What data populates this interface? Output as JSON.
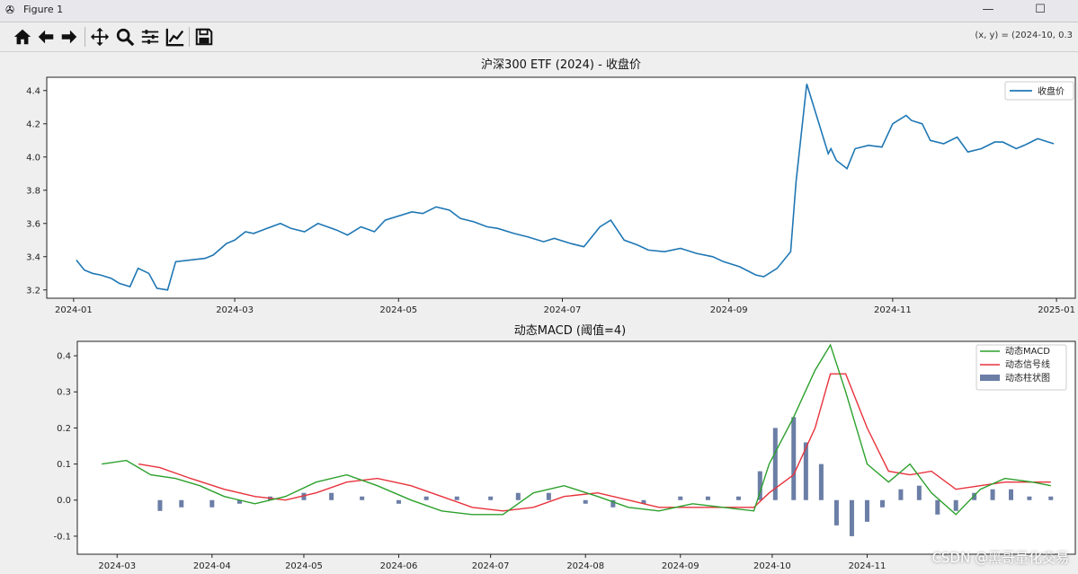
{
  "window": {
    "title": "Figure 1",
    "minimize": "—",
    "maximize": "☐"
  },
  "toolbar": {
    "buttons": [
      "home-icon",
      "back-icon",
      "forward-icon",
      "pan-icon",
      "zoom-icon",
      "configure-subplots-icon",
      "edit-axis-icon",
      "save-icon"
    ],
    "coord_readout": "(x, y) = (2024-10, 0.3"
  },
  "watermark": "CSDN @黑哥量化交易",
  "colors": {
    "price": "#1f77b4",
    "macd": "#2ca02c",
    "signal": "#e8323c",
    "hist": "#6b7ea6"
  },
  "chart_data": [
    {
      "type": "line",
      "title": "沪深300 ETF (2024) - 收盘价",
      "xlim": [
        "2023-12-22",
        "2025-01-08"
      ],
      "ylim": [
        3.15,
        4.48
      ],
      "yticks": [
        3.2,
        3.4,
        3.6,
        3.8,
        4.0,
        4.2,
        4.4
      ],
      "xticks": [
        "2024-01",
        "2024-03",
        "2024-05",
        "2024-07",
        "2024-09",
        "2024-11",
        "2025-01"
      ],
      "legend": "top-right",
      "series": [
        {
          "name": "收盘价",
          "x": [
            "2024-01-02",
            "2024-01-05",
            "2024-01-08",
            "2024-01-11",
            "2024-01-15",
            "2024-01-18",
            "2024-01-22",
            "2024-01-25",
            "2024-01-29",
            "2024-02-01",
            "2024-02-05",
            "2024-02-08",
            "2024-02-19",
            "2024-02-22",
            "2024-02-27",
            "2024-03-01",
            "2024-03-05",
            "2024-03-08",
            "2024-03-13",
            "2024-03-18",
            "2024-03-22",
            "2024-03-27",
            "2024-04-01",
            "2024-04-08",
            "2024-04-12",
            "2024-04-17",
            "2024-04-22",
            "2024-04-26",
            "2024-05-06",
            "2024-05-10",
            "2024-05-15",
            "2024-05-20",
            "2024-05-24",
            "2024-05-29",
            "2024-06-03",
            "2024-06-07",
            "2024-06-13",
            "2024-06-18",
            "2024-06-24",
            "2024-06-28",
            "2024-07-04",
            "2024-07-09",
            "2024-07-15",
            "2024-07-19",
            "2024-07-24",
            "2024-07-29",
            "2024-08-02",
            "2024-08-08",
            "2024-08-14",
            "2024-08-20",
            "2024-08-26",
            "2024-08-30",
            "2024-09-05",
            "2024-09-11",
            "2024-09-14",
            "2024-09-19",
            "2024-09-24",
            "2024-09-26",
            "2024-09-30",
            "2024-10-08",
            "2024-10-09",
            "2024-10-11",
            "2024-10-15",
            "2024-10-18",
            "2024-10-23",
            "2024-10-28",
            "2024-11-01",
            "2024-11-06",
            "2024-11-08",
            "2024-11-12",
            "2024-11-15",
            "2024-11-20",
            "2024-11-25",
            "2024-11-29",
            "2024-12-04",
            "2024-12-09",
            "2024-12-12",
            "2024-12-17",
            "2024-12-20",
            "2024-12-25",
            "2024-12-31"
          ],
          "y": [
            3.38,
            3.32,
            3.3,
            3.29,
            3.27,
            3.24,
            3.22,
            3.33,
            3.3,
            3.21,
            3.2,
            3.37,
            3.39,
            3.41,
            3.48,
            3.5,
            3.55,
            3.54,
            3.57,
            3.6,
            3.57,
            3.55,
            3.6,
            3.56,
            3.53,
            3.58,
            3.55,
            3.62,
            3.67,
            3.66,
            3.7,
            3.68,
            3.63,
            3.61,
            3.58,
            3.57,
            3.54,
            3.52,
            3.49,
            3.51,
            3.48,
            3.46,
            3.58,
            3.62,
            3.5,
            3.47,
            3.44,
            3.43,
            3.45,
            3.42,
            3.4,
            3.37,
            3.34,
            3.29,
            3.28,
            3.33,
            3.43,
            3.85,
            4.44,
            4.02,
            4.05,
            3.98,
            3.93,
            4.05,
            4.07,
            4.06,
            4.2,
            4.25,
            4.22,
            4.2,
            4.1,
            4.08,
            4.12,
            4.03,
            4.05,
            4.09,
            4.09,
            4.05,
            4.07,
            4.11,
            4.08
          ]
        }
      ]
    },
    {
      "type": "bar+line",
      "title": "动态MACD (阈值=4)",
      "xlim": [
        "2024-02-17",
        "2025-01-08"
      ],
      "ylim": [
        -0.15,
        0.44
      ],
      "yticks": [
        -0.1,
        0.0,
        0.1,
        0.2,
        0.3,
        0.4
      ],
      "xticks": [
        "2024-03",
        "2024-04",
        "2024-05",
        "2024-06",
        "2024-07",
        "2024-08",
        "2024-09",
        "2024-10",
        "2024-11"
      ],
      "legend": "top-right",
      "series": [
        {
          "name": "动态MACD",
          "x": [
            "2024-02-25",
            "2024-03-04",
            "2024-03-12",
            "2024-03-20",
            "2024-03-28",
            "2024-04-05",
            "2024-04-15",
            "2024-04-25",
            "2024-05-05",
            "2024-05-15",
            "2024-05-25",
            "2024-06-05",
            "2024-06-15",
            "2024-06-25",
            "2024-07-05",
            "2024-07-15",
            "2024-07-25",
            "2024-08-05",
            "2024-08-15",
            "2024-08-25",
            "2024-09-05",
            "2024-09-15",
            "2024-09-25",
            "2024-09-30",
            "2024-10-08",
            "2024-10-15",
            "2024-10-20",
            "2024-10-25",
            "2024-11-01",
            "2024-11-08",
            "2024-11-15",
            "2024-11-22",
            "2024-11-30",
            "2024-12-08",
            "2024-12-16",
            "2024-12-25",
            "2024-12-31"
          ],
          "values": [
            0.1,
            0.11,
            0.07,
            0.06,
            0.04,
            0.01,
            -0.01,
            0.01,
            0.05,
            0.07,
            0.04,
            0.0,
            -0.03,
            -0.04,
            -0.04,
            0.02,
            0.04,
            0.01,
            -0.02,
            -0.03,
            -0.01,
            -0.02,
            -0.03,
            0.1,
            0.23,
            0.36,
            0.43,
            0.3,
            0.1,
            0.05,
            0.1,
            0.02,
            -0.04,
            0.03,
            0.06,
            0.05,
            0.04
          ]
        },
        {
          "name": "动态信号线",
          "x": [
            "2024-03-08",
            "2024-03-15",
            "2024-03-25",
            "2024-04-05",
            "2024-04-15",
            "2024-04-25",
            "2024-05-05",
            "2024-05-15",
            "2024-05-25",
            "2024-06-05",
            "2024-06-15",
            "2024-06-25",
            "2024-07-05",
            "2024-07-15",
            "2024-07-25",
            "2024-08-05",
            "2024-08-15",
            "2024-08-25",
            "2024-09-05",
            "2024-09-15",
            "2024-09-25",
            "2024-09-30",
            "2024-10-08",
            "2024-10-15",
            "2024-10-20",
            "2024-10-25",
            "2024-11-01",
            "2024-11-08",
            "2024-11-15",
            "2024-11-22",
            "2024-11-30",
            "2024-12-08",
            "2024-12-16",
            "2024-12-25",
            "2024-12-31"
          ],
          "values": [
            0.1,
            0.09,
            0.06,
            0.03,
            0.01,
            0.0,
            0.02,
            0.05,
            0.06,
            0.04,
            0.01,
            -0.02,
            -0.03,
            -0.02,
            0.01,
            0.02,
            0.0,
            -0.02,
            -0.02,
            -0.02,
            -0.02,
            0.02,
            0.07,
            0.2,
            0.35,
            0.35,
            0.2,
            0.08,
            0.07,
            0.08,
            0.03,
            0.04,
            0.05,
            0.05,
            0.05
          ]
        },
        {
          "name": "动态柱状图",
          "x": [
            "2024-03-15",
            "2024-03-22",
            "2024-04-01",
            "2024-04-10",
            "2024-04-20",
            "2024-05-01",
            "2024-05-10",
            "2024-05-20",
            "2024-06-01",
            "2024-06-10",
            "2024-06-20",
            "2024-07-01",
            "2024-07-10",
            "2024-07-20",
            "2024-08-01",
            "2024-08-10",
            "2024-08-20",
            "2024-09-01",
            "2024-09-10",
            "2024-09-20",
            "2024-09-27",
            "2024-10-02",
            "2024-10-08",
            "2024-10-12",
            "2024-10-17",
            "2024-10-22",
            "2024-10-27",
            "2024-11-01",
            "2024-11-06",
            "2024-11-12",
            "2024-11-18",
            "2024-11-24",
            "2024-11-30",
            "2024-12-06",
            "2024-12-12",
            "2024-12-18",
            "2024-12-24",
            "2024-12-31"
          ],
          "values": [
            -0.03,
            -0.02,
            -0.02,
            -0.01,
            0.01,
            0.02,
            0.02,
            0.01,
            -0.01,
            0.01,
            0.01,
            0.01,
            0.02,
            0.02,
            -0.01,
            -0.02,
            -0.01,
            0.01,
            0.01,
            0.01,
            0.08,
            0.2,
            0.23,
            0.16,
            0.1,
            -0.07,
            -0.1,
            -0.06,
            -0.02,
            0.03,
            0.04,
            -0.04,
            -0.03,
            0.02,
            0.03,
            0.03,
            0.01,
            0.01
          ]
        }
      ]
    }
  ]
}
